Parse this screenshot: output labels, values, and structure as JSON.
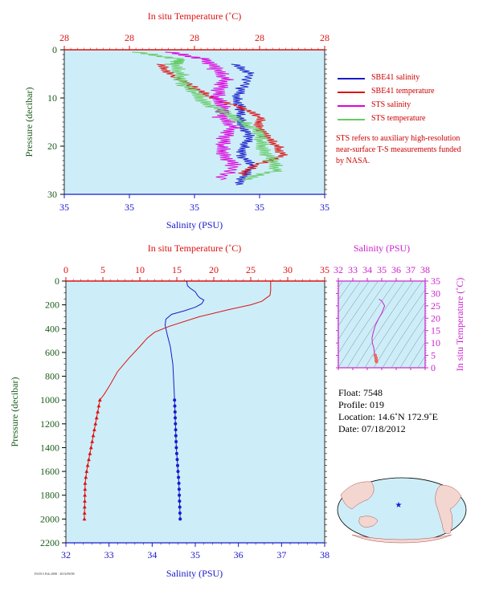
{
  "colors": {
    "salinity": "#1a1acc",
    "temperature": "#dd1111",
    "sts_salinity": "#dd00dd",
    "sts_temperature": "#66cc66",
    "panel_bg": "#cdeef8",
    "ts_axis": "#cc22cc",
    "depth_axis": "#1a5c1a"
  },
  "top_panel": {
    "top_axis_title": "In situ Temperature (˚C)",
    "top_ticks": [
      "28",
      "28",
      "28",
      "28",
      "28"
    ],
    "bottom_axis_title": "Salinity (PSU)",
    "bottom_ticks": [
      "35",
      "35",
      "35",
      "35",
      "35"
    ],
    "y_axis_title": "Pressure (decibar)",
    "y_ticks": [
      "0",
      "10",
      "20",
      "30"
    ]
  },
  "legend": {
    "items": [
      {
        "label": "SBE41 salinity",
        "color": "#1a1acc"
      },
      {
        "label": "SBE41 temperature",
        "color": "#dd1111"
      },
      {
        "label": "STS salinity",
        "color": "#dd00dd"
      },
      {
        "label": "STS temperature",
        "color": "#66cc66"
      }
    ],
    "note": "STS refers to auxiliary high-resolution near-surface T-S measurements funded by NASA."
  },
  "main_panel": {
    "top_axis_title": "In situ Temperature (˚C)",
    "bottom_axis_title": "Salinity (PSU)",
    "y_axis_title": "Pressure (decibar)"
  },
  "ts_panel": {
    "top_axis_title": "Salinity (PSU)",
    "right_axis_title": "In situ Temperature (˚C)"
  },
  "info": {
    "float": "Float: 7548",
    "profile": "Profile: 019",
    "location": "Location: 14.6˚N 172.9˚E",
    "date": "Date: 07/18/2012"
  },
  "credit": "FSI/0.5 Feb 2008 · 2013/09/08",
  "chart_data": [
    {
      "type": "line",
      "title": "",
      "ylabel": "Pressure (decibar)",
      "ylim": [
        0,
        30
      ],
      "y_inverted": true,
      "grid": false,
      "legend_position": "right",
      "series": [
        {
          "name": "SBE41 salinity",
          "axis": "bottom",
          "x": [
            34.65,
            34.72,
            34.68,
            34.66,
            34.68,
            34.67,
            34.69,
            34.71,
            34.69,
            34.68,
            34.72,
            34.7,
            34.66
          ],
          "y": [
            3,
            5,
            8,
            10,
            12,
            14,
            16,
            18,
            20,
            22,
            24,
            26,
            28
          ]
        },
        {
          "name": "SBE41 temperature",
          "axis": "top",
          "x": [
            27.6,
            27.7,
            27.9,
            28.05,
            28.3,
            28.45,
            28.45,
            28.5,
            28.6,
            28.65,
            28.4,
            28.3
          ],
          "y": [
            3,
            5,
            8,
            10,
            12,
            14,
            16,
            18,
            20,
            22,
            24,
            26
          ]
        },
        {
          "name": "STS salinity",
          "axis": "bottom",
          "x": [
            34.4,
            34.55,
            34.58,
            34.62,
            34.6,
            34.58,
            34.62,
            34.6,
            34.65,
            34.62,
            34.6,
            34.62,
            34.65,
            34.6
          ],
          "y": [
            0.5,
            2,
            4,
            6,
            8,
            10,
            12,
            14,
            16,
            18,
            20,
            22,
            24,
            27
          ]
        },
        {
          "name": "STS temperature",
          "axis": "top",
          "x": [
            27.4,
            27.8,
            27.72,
            27.78,
            27.8,
            27.9,
            28.0,
            28.15,
            28.3,
            28.45,
            28.45,
            28.5,
            28.55,
            28.6,
            28.3
          ],
          "y": [
            0.5,
            2,
            3,
            5,
            7,
            9,
            11,
            13,
            15,
            17,
            19,
            21,
            23,
            25,
            27
          ]
        }
      ]
    },
    {
      "type": "line",
      "title": "",
      "xlabel": "Salinity (PSU)",
      "ylabel": "Pressure (decibar)",
      "xlim": [
        32,
        38
      ],
      "x_ticks": [
        "32",
        "33",
        "34",
        "35",
        "36",
        "37",
        "38"
      ],
      "x2label": "In situ Temperature (˚C)",
      "x2lim": [
        0,
        35
      ],
      "x2_ticks": [
        "0",
        "5",
        "10",
        "15",
        "20",
        "25",
        "30",
        "35"
      ],
      "ylim": [
        0,
        2200
      ],
      "y_ticks": [
        "0",
        "200",
        "400",
        "600",
        "800",
        "1000",
        "1200",
        "1400",
        "1600",
        "1800",
        "2000",
        "2200"
      ],
      "y_inverted": true,
      "grid": false,
      "series": [
        {
          "name": "Salinity",
          "axis": "bottom",
          "x": [
            34.8,
            34.82,
            34.88,
            35.0,
            35.05,
            35.1,
            35.2,
            35.15,
            35.0,
            34.75,
            34.45,
            34.32,
            34.3,
            34.35,
            34.42,
            34.48,
            34.5,
            34.52,
            34.53,
            34.54,
            34.55,
            34.56,
            34.58,
            34.6,
            34.62,
            34.63,
            34.64,
            34.65
          ],
          "y": [
            0,
            40,
            60,
            90,
            120,
            140,
            160,
            190,
            220,
            250,
            280,
            320,
            370,
            450,
            550,
            700,
            850,
            1000,
            1100,
            1200,
            1300,
            1400,
            1500,
            1600,
            1700,
            1800,
            1900,
            2000
          ],
          "markers_from_y": 1000
        },
        {
          "name": "Temperature",
          "axis": "top",
          "x": [
            27.7,
            27.7,
            27.7,
            27.6,
            26.5,
            25.0,
            22.0,
            18.0,
            14.0,
            12.0,
            11.0,
            10.0,
            8.5,
            7.0,
            6.0,
            5.2,
            4.6,
            4.3,
            4.0,
            3.7,
            3.4,
            3.1,
            2.8,
            2.6,
            2.5
          ],
          "y": [
            0,
            50,
            80,
            120,
            170,
            200,
            240,
            300,
            380,
            430,
            480,
            550,
            650,
            760,
            870,
            950,
            1000,
            1100,
            1200,
            1300,
            1400,
            1500,
            1600,
            1700,
            2000
          ],
          "markers_from_y": 1000
        }
      ]
    },
    {
      "type": "scatter",
      "title": "",
      "xlabel": "Salinity (PSU)",
      "xlim": [
        32,
        38
      ],
      "x_ticks": [
        "32",
        "33",
        "34",
        "35",
        "36",
        "37",
        "38"
      ],
      "ylabel": "In situ Temperature (˚C)",
      "ylim": [
        0,
        35
      ],
      "y_ticks": [
        "0",
        "5",
        "10",
        "15",
        "20",
        "25",
        "30",
        "35"
      ],
      "series": [
        {
          "name": "T-S profile",
          "x": [
            34.8,
            35.0,
            35.2,
            35.0,
            34.8,
            34.55,
            34.4,
            34.33,
            34.35,
            34.45,
            34.5,
            34.55,
            34.6,
            34.62,
            34.64
          ],
          "y": [
            27.7,
            27.0,
            25.0,
            22.0,
            20.0,
            17.0,
            14.0,
            12.0,
            10.0,
            8.0,
            6.0,
            5.0,
            4.0,
            3.0,
            2.5
          ]
        }
      ]
    },
    {
      "type": "scatter",
      "title": "",
      "description_hidden": false,
      "series": [
        {
          "name": "Float location",
          "x": [
            172.9
          ],
          "y": [
            14.6
          ]
        }
      ]
    }
  ]
}
